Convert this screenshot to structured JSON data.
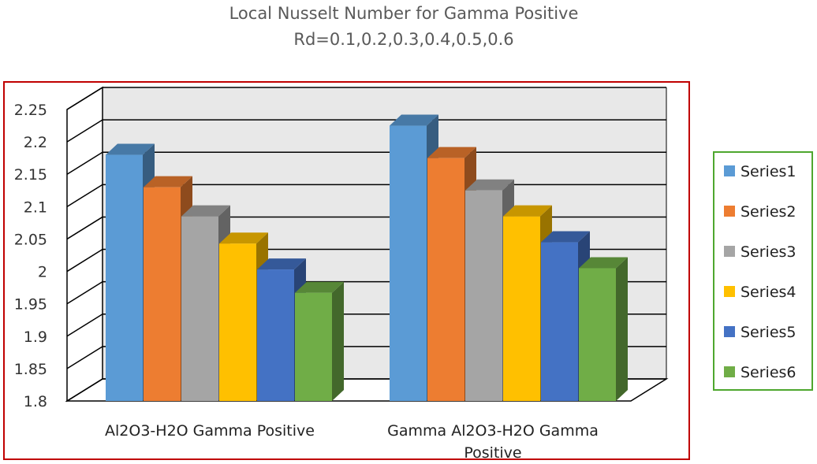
{
  "chart_data": {
    "type": "bar",
    "title": "Local Nusselt Number for Gamma Positive",
    "subtitle": "Rd=0.1,0.2,0.3,0.4,0.5,0.6",
    "xlabel": "",
    "ylabel": "",
    "ylim": [
      1.8,
      2.25
    ],
    "yticks": [
      "1.8",
      "1.85",
      "1.9",
      "1.95",
      "2",
      "2.05",
      "2.1",
      "2.15",
      "2.2",
      "2.25"
    ],
    "categories": [
      "Al2O3-H2O Gamma Positive",
      "Gamma Al2O3-H2O Gamma Positive"
    ],
    "category_lines": [
      [
        "Al2O3-H2O Gamma Positive"
      ],
      [
        "Gamma Al2O3-H2O Gamma",
        "Positive"
      ]
    ],
    "grid": true,
    "legend_position": "right",
    "series": [
      {
        "name": "Series1",
        "values": [
          2.18,
          2.225
        ],
        "color": "#5B9BD5"
      },
      {
        "name": "Series2",
        "values": [
          2.13,
          2.175
        ],
        "color": "#ED7D31"
      },
      {
        "name": "Series3",
        "values": [
          2.085,
          2.125
        ],
        "color": "#A5A5A5"
      },
      {
        "name": "Series4",
        "values": [
          2.043,
          2.085
        ],
        "color": "#FFC000"
      },
      {
        "name": "Series5",
        "values": [
          2.003,
          2.045
        ],
        "color": "#4472C4"
      },
      {
        "name": "Series6",
        "values": [
          1.967,
          2.005
        ],
        "color": "#70AD47"
      }
    ]
  },
  "colors": {
    "plot_background": "#E8E8E8",
    "frame_border": "#C00000",
    "legend_border": "#4EA72E",
    "gridline": "#000000"
  }
}
